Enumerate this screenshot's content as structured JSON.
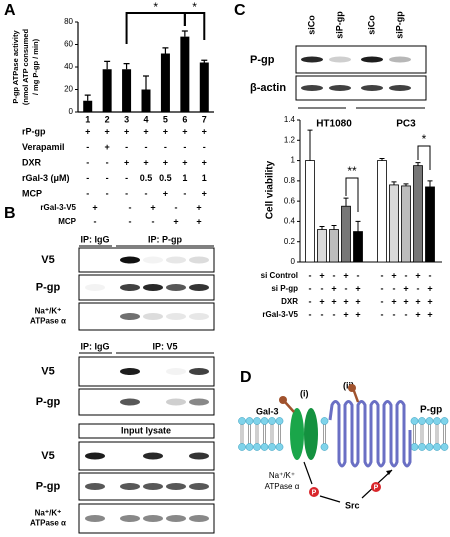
{
  "panel_labels": [
    "A",
    "B",
    "C",
    "D"
  ],
  "chart_data": [
    {
      "type": "bar",
      "ylabel": [
        "P-gp ATPase activity",
        "(nmol ATP consumed",
        "/ mg P-gp / min)"
      ],
      "categories": [
        "1",
        "2",
        "3",
        "4",
        "5",
        "6",
        "7"
      ],
      "values": [
        10,
        38,
        38,
        20,
        52,
        67,
        44
      ],
      "errors": [
        5,
        7,
        5,
        12,
        5,
        5,
        2
      ],
      "color": "#000000",
      "ylim": [
        0,
        80
      ],
      "yticks": [
        0,
        20,
        40,
        60,
        80
      ],
      "significance": [
        "*",
        "*"
      ],
      "conditions": [
        {
          "label": "rP-gp",
          "marks": [
            "+",
            "+",
            "+",
            "+",
            "+",
            "+",
            "+"
          ]
        },
        {
          "label": "Verapamil",
          "marks": [
            "-",
            "+",
            "-",
            "-",
            "-",
            "-",
            "-"
          ]
        },
        {
          "label": "DXR",
          "marks": [
            "-",
            "-",
            "+",
            "+",
            "+",
            "+",
            "+"
          ]
        },
        {
          "label": "rGal-3 (μM)",
          "marks": [
            "-",
            "-",
            "-",
            "0.5",
            "0.5",
            "1",
            "1"
          ]
        },
        {
          "label": "MCP",
          "marks": [
            "-",
            "-",
            "-",
            "-",
            "+",
            "-",
            "+"
          ]
        }
      ]
    },
    {
      "type": "bar",
      "ylabel": "Cell viability",
      "categories": [
        "HT1080",
        "PC3"
      ],
      "series": [
        {
          "color": "#ffffff",
          "values": [
            1.0,
            1.0
          ],
          "errors": [
            0.3,
            0.02
          ]
        },
        {
          "color": "#d9d9d9",
          "values": [
            0.32,
            0.76
          ],
          "errors": [
            0.03,
            0.03
          ]
        },
        {
          "color": "#bdbdbd",
          "values": [
            0.32,
            0.75
          ],
          "errors": [
            0.04,
            0.02
          ]
        },
        {
          "color": "#777777",
          "values": [
            0.55,
            0.95
          ],
          "errors": [
            0.08,
            0.03
          ]
        },
        {
          "color": "#000000",
          "values": [
            0.3,
            0.74
          ],
          "errors": [
            0.1,
            0.06
          ]
        }
      ],
      "ylim": [
        0,
        1.4
      ],
      "yticks": [
        0,
        0.2,
        0.4,
        0.6,
        0.8,
        1,
        1.2,
        1.4
      ],
      "significance": [
        "**",
        "*"
      ],
      "conditions": [
        {
          "label": "si Control",
          "marks": [
            "-",
            "+",
            "-",
            "+",
            "-",
            "-",
            "+",
            "-",
            "+",
            "-"
          ]
        },
        {
          "label": "si P-gp",
          "marks": [
            "-",
            "-",
            "+",
            "-",
            "+",
            "-",
            "-",
            "+",
            "-",
            "+"
          ]
        },
        {
          "label": "DXR",
          "marks": [
            "-",
            "+",
            "+",
            "+",
            "+",
            "-",
            "+",
            "+",
            "+",
            "+"
          ]
        },
        {
          "label": "rGal-3-V5",
          "marks": [
            "-",
            "-",
            "-",
            "+",
            "+",
            "-",
            "-",
            "-",
            "+",
            "+"
          ]
        }
      ]
    }
  ],
  "blot_b": {
    "headers": [
      {
        "label": "rGal-3-V5",
        "marks": [
          "+",
          "-",
          "+",
          "-",
          "+"
        ]
      },
      {
        "label": "MCP",
        "marks": [
          "-",
          "-",
          "-",
          "+",
          "+"
        ]
      }
    ],
    "sections": [
      {
        "titles": [
          "IP: IgG",
          "IP: P-gp"
        ],
        "rows": [
          [
            "V5"
          ],
          [
            "P-gp"
          ],
          [
            "Na⁺/K⁺",
            "ATPase α"
          ]
        ]
      },
      {
        "titles": [
          "IP: IgG",
          "IP: V5"
        ],
        "rows": [
          [
            "V5"
          ],
          [
            "P-gp"
          ]
        ]
      },
      {
        "titles": [
          "Input lysate"
        ],
        "rows": [
          [
            "V5"
          ],
          [
            "P-gp"
          ],
          [
            "Na⁺/K⁺",
            "ATPase α"
          ]
        ]
      }
    ]
  },
  "blot_c": {
    "lanes": [
      "siCo",
      "siP-gp",
      "siCo",
      "siP-gp"
    ],
    "rows": [
      "P-gp",
      "β-actin"
    ]
  },
  "diagram_d": {
    "sites": [
      "(i)",
      "(ii)"
    ],
    "gal3": "Gal-3",
    "pgp": "P-gp",
    "atpase": [
      "Na⁺/K⁺",
      "ATPase α"
    ],
    "src": "Src",
    "phospho": [
      "P",
      "P"
    ]
  }
}
